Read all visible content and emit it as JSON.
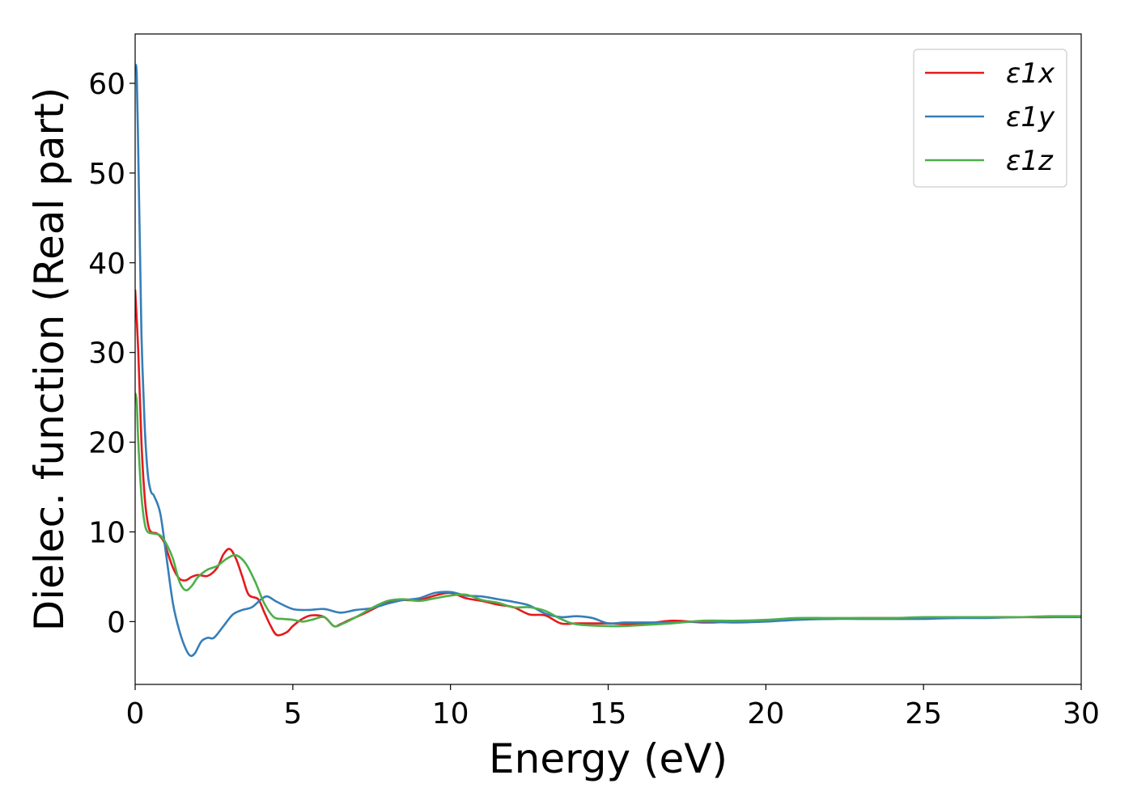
{
  "chart_data": {
    "type": "line",
    "title": "",
    "xlabel": "Energy (eV)",
    "ylabel": "Dielec. function (Real part)",
    "xlim": [
      0,
      30
    ],
    "ylim": [
      -7,
      65.5
    ],
    "xticks": [
      0,
      5,
      10,
      15,
      20,
      25,
      30
    ],
    "yticks": [
      0,
      10,
      20,
      30,
      40,
      50,
      60
    ],
    "grid": false,
    "legend_position": "top-right",
    "series": [
      {
        "name": "ε1x",
        "color": "#e41a1c",
        "points": [
          [
            0.0,
            37.0
          ],
          [
            0.1,
            30.0
          ],
          [
            0.2,
            20.0
          ],
          [
            0.3,
            14.0
          ],
          [
            0.4,
            11.0
          ],
          [
            0.5,
            10.0
          ],
          [
            0.7,
            9.8
          ],
          [
            0.9,
            9.0
          ],
          [
            1.0,
            8.0
          ],
          [
            1.2,
            6.0
          ],
          [
            1.4,
            4.8
          ],
          [
            1.6,
            4.6
          ],
          [
            1.8,
            5.0
          ],
          [
            2.0,
            5.2
          ],
          [
            2.3,
            5.1
          ],
          [
            2.6,
            6.0
          ],
          [
            2.8,
            7.5
          ],
          [
            3.0,
            8.1
          ],
          [
            3.2,
            7.0
          ],
          [
            3.4,
            5.0
          ],
          [
            3.6,
            3.0
          ],
          [
            3.9,
            2.5
          ],
          [
            4.1,
            1.0
          ],
          [
            4.3,
            -0.5
          ],
          [
            4.5,
            -1.5
          ],
          [
            4.8,
            -1.2
          ],
          [
            5.0,
            -0.5
          ],
          [
            5.3,
            0.3
          ],
          [
            5.6,
            0.7
          ],
          [
            6.0,
            0.5
          ],
          [
            6.3,
            -0.5
          ],
          [
            6.5,
            -0.3
          ],
          [
            6.8,
            0.2
          ],
          [
            7.2,
            0.8
          ],
          [
            7.6,
            1.5
          ],
          [
            8.0,
            2.2
          ],
          [
            8.5,
            2.4
          ],
          [
            9.0,
            2.4
          ],
          [
            9.5,
            2.9
          ],
          [
            10.0,
            3.2
          ],
          [
            10.5,
            2.6
          ],
          [
            11.0,
            2.3
          ],
          [
            11.5,
            1.9
          ],
          [
            12.0,
            1.6
          ],
          [
            12.5,
            0.8
          ],
          [
            13.0,
            0.7
          ],
          [
            13.5,
            -0.2
          ],
          [
            14.0,
            -0.2
          ],
          [
            15.0,
            -0.2
          ],
          [
            16.0,
            -0.3
          ],
          [
            17.0,
            0.1
          ],
          [
            18.0,
            -0.1
          ],
          [
            19.0,
            0.0
          ],
          [
            20.0,
            0.1
          ],
          [
            21.0,
            0.3
          ],
          [
            22.0,
            0.3
          ],
          [
            23.0,
            0.4
          ],
          [
            24.0,
            0.4
          ],
          [
            25.0,
            0.4
          ],
          [
            26.0,
            0.4
          ],
          [
            27.0,
            0.5
          ],
          [
            28.0,
            0.5
          ],
          [
            29.0,
            0.5
          ],
          [
            30.0,
            0.6
          ]
        ]
      },
      {
        "name": "ε1y",
        "color": "#377eb8",
        "points": [
          [
            0.0,
            62.0
          ],
          [
            0.05,
            61.0
          ],
          [
            0.1,
            52.0
          ],
          [
            0.15,
            42.0
          ],
          [
            0.2,
            32.0
          ],
          [
            0.3,
            22.0
          ],
          [
            0.4,
            16.5
          ],
          [
            0.5,
            14.5
          ],
          [
            0.6,
            14.0
          ],
          [
            0.8,
            12.0
          ],
          [
            1.0,
            7.0
          ],
          [
            1.2,
            2.0
          ],
          [
            1.4,
            -1.0
          ],
          [
            1.6,
            -3.0
          ],
          [
            1.75,
            -3.8
          ],
          [
            1.9,
            -3.5
          ],
          [
            2.1,
            -2.2
          ],
          [
            2.3,
            -1.8
          ],
          [
            2.5,
            -1.8
          ],
          [
            2.8,
            -0.5
          ],
          [
            3.1,
            0.8
          ],
          [
            3.4,
            1.3
          ],
          [
            3.7,
            1.6
          ],
          [
            4.0,
            2.5
          ],
          [
            4.2,
            2.8
          ],
          [
            4.5,
            2.2
          ],
          [
            5.0,
            1.4
          ],
          [
            5.5,
            1.3
          ],
          [
            6.0,
            1.4
          ],
          [
            6.5,
            1.0
          ],
          [
            7.0,
            1.3
          ],
          [
            7.5,
            1.5
          ],
          [
            8.0,
            2.0
          ],
          [
            8.5,
            2.4
          ],
          [
            9.0,
            2.6
          ],
          [
            9.5,
            3.2
          ],
          [
            10.0,
            3.3
          ],
          [
            10.5,
            2.9
          ],
          [
            11.0,
            2.8
          ],
          [
            11.5,
            2.5
          ],
          [
            12.0,
            2.2
          ],
          [
            12.5,
            1.8
          ],
          [
            13.0,
            0.9
          ],
          [
            13.5,
            0.5
          ],
          [
            14.0,
            0.6
          ],
          [
            14.5,
            0.4
          ],
          [
            15.0,
            -0.2
          ],
          [
            15.5,
            -0.1
          ],
          [
            16.0,
            -0.1
          ],
          [
            16.5,
            -0.1
          ],
          [
            17.0,
            -0.1
          ],
          [
            18.0,
            0.0
          ],
          [
            19.0,
            -0.1
          ],
          [
            20.0,
            0.0
          ],
          [
            21.0,
            0.2
          ],
          [
            22.0,
            0.3
          ],
          [
            23.0,
            0.3
          ],
          [
            24.0,
            0.3
          ],
          [
            25.0,
            0.3
          ],
          [
            26.0,
            0.4
          ],
          [
            27.0,
            0.4
          ],
          [
            28.0,
            0.5
          ],
          [
            29.0,
            0.5
          ],
          [
            30.0,
            0.5
          ]
        ]
      },
      {
        "name": "ε1z",
        "color": "#4daf4a",
        "points": [
          [
            0.0,
            25.5
          ],
          [
            0.05,
            24.5
          ],
          [
            0.1,
            20.0
          ],
          [
            0.2,
            14.0
          ],
          [
            0.3,
            11.0
          ],
          [
            0.4,
            10.0
          ],
          [
            0.6,
            9.8
          ],
          [
            0.8,
            9.6
          ],
          [
            1.0,
            8.6
          ],
          [
            1.2,
            7.0
          ],
          [
            1.4,
            4.5
          ],
          [
            1.6,
            3.5
          ],
          [
            1.8,
            4.0
          ],
          [
            2.0,
            5.0
          ],
          [
            2.3,
            5.8
          ],
          [
            2.6,
            6.2
          ],
          [
            2.9,
            7.0
          ],
          [
            3.2,
            7.4
          ],
          [
            3.5,
            6.5
          ],
          [
            3.8,
            4.5
          ],
          [
            4.1,
            2.0
          ],
          [
            4.4,
            0.5
          ],
          [
            4.7,
            0.3
          ],
          [
            5.0,
            0.2
          ],
          [
            5.3,
            0.0
          ],
          [
            5.6,
            0.2
          ],
          [
            6.0,
            0.5
          ],
          [
            6.3,
            -0.5
          ],
          [
            6.6,
            -0.2
          ],
          [
            7.0,
            0.5
          ],
          [
            7.5,
            1.5
          ],
          [
            8.0,
            2.3
          ],
          [
            8.5,
            2.5
          ],
          [
            9.0,
            2.3
          ],
          [
            9.5,
            2.6
          ],
          [
            10.0,
            2.9
          ],
          [
            10.5,
            3.0
          ],
          [
            11.0,
            2.4
          ],
          [
            11.5,
            2.1
          ],
          [
            12.0,
            1.6
          ],
          [
            12.5,
            1.6
          ],
          [
            13.0,
            1.2
          ],
          [
            13.5,
            0.3
          ],
          [
            14.0,
            -0.3
          ],
          [
            15.0,
            -0.5
          ],
          [
            15.5,
            -0.5
          ],
          [
            16.0,
            -0.4
          ],
          [
            17.0,
            -0.2
          ],
          [
            18.0,
            0.1
          ],
          [
            19.0,
            0.1
          ],
          [
            20.0,
            0.2
          ],
          [
            21.0,
            0.4
          ],
          [
            22.0,
            0.4
          ],
          [
            23.0,
            0.4
          ],
          [
            24.0,
            0.4
          ],
          [
            25.0,
            0.5
          ],
          [
            26.0,
            0.5
          ],
          [
            27.0,
            0.5
          ],
          [
            28.0,
            0.5
          ],
          [
            29.0,
            0.6
          ],
          [
            30.0,
            0.6
          ]
        ]
      }
    ]
  }
}
